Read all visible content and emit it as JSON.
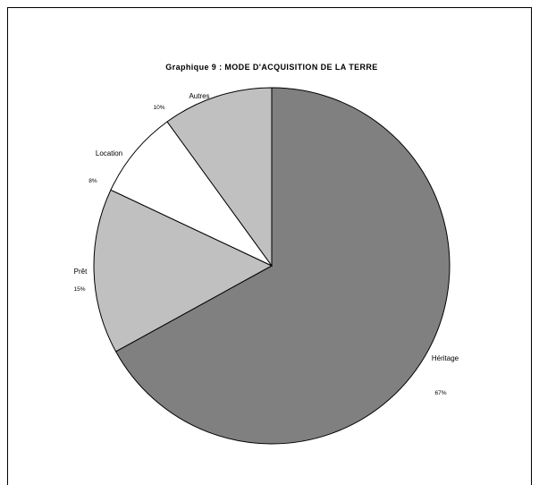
{
  "chart_data": {
    "type": "pie",
    "title": "Graphique 9 : MODE D'ACQUISITION DE LA TERRE",
    "categories": [
      "Héritage",
      "Prêt",
      "Location",
      "Autres"
    ],
    "values": [
      67,
      15,
      8,
      10
    ],
    "percent_labels": [
      "67%",
      "15%",
      "8%",
      "10%"
    ],
    "colors": [
      "#808080",
      "#c0c0c0",
      "#ffffff",
      "#c0c0c0"
    ],
    "start_angle_deg": 0,
    "direction": "clockwise",
    "legend": "none"
  }
}
